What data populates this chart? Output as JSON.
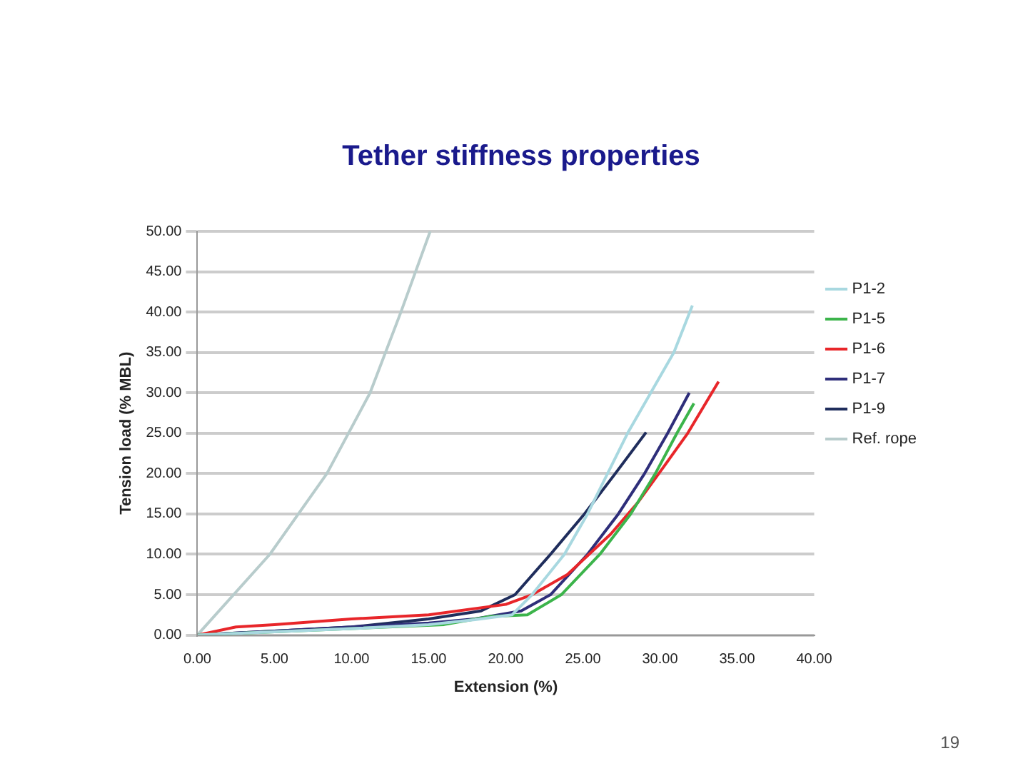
{
  "chart_data": {
    "type": "line",
    "title": "Tether stiffness properties",
    "xlabel": "Extension (%)",
    "ylabel": "Tension load (% MBL)",
    "xlim": [
      0,
      40
    ],
    "xticks": [
      {
        "value": 0,
        "label": "0.00"
      },
      {
        "value": 5,
        "label": "5.00"
      },
      {
        "value": 10,
        "label": "10.00"
      },
      {
        "value": 15,
        "label": "15.00"
      },
      {
        "value": 20,
        "label": "20.00"
      },
      {
        "value": 25,
        "label": "25.00"
      },
      {
        "value": 30,
        "label": "30.00"
      },
      {
        "value": 35,
        "label": "35.00"
      },
      {
        "value": 40,
        "label": "40.00"
      }
    ],
    "ylim": [
      0,
      50
    ],
    "yticks": [
      {
        "value": 0,
        "label": "0.00"
      },
      {
        "value": 5,
        "label": "5.00"
      },
      {
        "value": 10,
        "label": "10.00"
      },
      {
        "value": 15,
        "label": "15.00"
      },
      {
        "value": 20,
        "label": "20.00"
      },
      {
        "value": 25,
        "label": "25.00"
      },
      {
        "value": 30,
        "label": "30.00"
      },
      {
        "value": 35,
        "label": "35.00"
      },
      {
        "value": 40,
        "label": "40.00"
      },
      {
        "value": 45,
        "label": "45.00"
      },
      {
        "value": 50,
        "label": "50.00"
      }
    ],
    "grid": "y",
    "legend": "right",
    "marker": "none",
    "line_style": "solid",
    "series": [
      {
        "name": "P1-2",
        "color": "#a8d8e0",
        "x": [
          0,
          5,
          10,
          15,
          18,
          20.4,
          21.7,
          23.8,
          25.3,
          26.6,
          27.9,
          29.4,
          30.9,
          32.1
        ],
        "values": [
          0,
          0.4,
          0.8,
          1.3,
          1.9,
          2.5,
          5,
          10,
          15,
          20,
          25,
          30,
          35,
          40.8
        ]
      },
      {
        "name": "P1-5",
        "color": "#3cb44b",
        "x": [
          0,
          5,
          10,
          16,
          19,
          21.4,
          23.6,
          26.1,
          28.1,
          29.7,
          31.1,
          32.2
        ],
        "values": [
          0,
          0.4,
          0.8,
          1.3,
          2.3,
          2.5,
          5,
          10,
          15,
          20,
          25,
          28.7
        ]
      },
      {
        "name": "P1-6",
        "color": "#e8262a",
        "x": [
          0,
          2.5,
          5,
          10,
          15,
          20,
          21.7,
          24,
          26.8,
          28.6,
          30.3,
          31.8,
          33.8
        ],
        "values": [
          0,
          1,
          1.3,
          2,
          2.5,
          3.8,
          5,
          7.5,
          12.5,
          16.5,
          21,
          25,
          31.4
        ]
      },
      {
        "name": "P1-7",
        "color": "#2e2e7a",
        "x": [
          0,
          5,
          10,
          15,
          18,
          21,
          22.9,
          25.3,
          27.3,
          29,
          30.5,
          31.9
        ],
        "values": [
          0,
          0.5,
          1,
          1.5,
          2,
          3,
          5,
          10,
          15,
          20,
          25,
          30
        ]
      },
      {
        "name": "P1-9",
        "color": "#1f2d5c",
        "x": [
          0,
          5,
          10,
          15,
          18.4,
          20.6,
          22.9,
          25.1,
          27.1,
          29.1
        ],
        "values": [
          0,
          0.5,
          1,
          2,
          3,
          5,
          10,
          15,
          20,
          25.1
        ]
      },
      {
        "name": "Ref. rope",
        "color": "#b8cccc",
        "x": [
          0,
          4.7,
          8.4,
          11.2,
          13.2,
          15.1
        ],
        "values": [
          0,
          10,
          20,
          30,
          40,
          50
        ]
      }
    ],
    "annotations": [
      "19"
    ]
  }
}
